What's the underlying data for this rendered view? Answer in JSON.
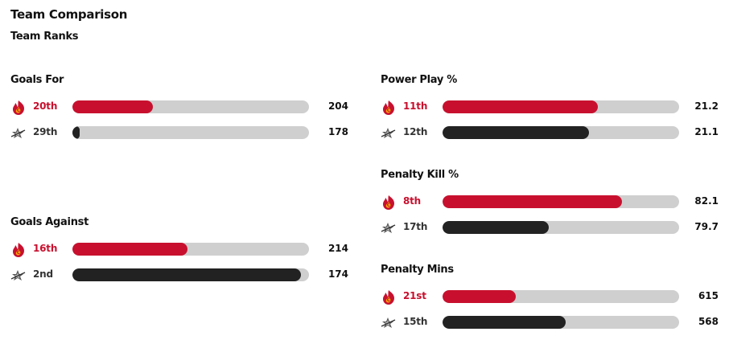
{
  "header": {
    "title": "Team Comparison",
    "subtitle": "Team Ranks"
  },
  "colors": {
    "calgary": "#c8102e",
    "dallas": "#222222",
    "track": "#cfcfcf"
  },
  "teams": {
    "home": {
      "icon": "flames-logo-icon"
    },
    "away": {
      "icon": "stars-logo-icon"
    }
  },
  "stats": {
    "goals_for": {
      "label": "Goals For",
      "home": {
        "rank": "20th",
        "value": "204",
        "fill": 0.34
      },
      "away": {
        "rank": "29th",
        "value": "178",
        "fill": 0.03
      }
    },
    "goals_against": {
      "label": "Goals Against",
      "home": {
        "rank": "16th",
        "value": "214",
        "fill": 0.485
      },
      "away": {
        "rank": "2nd",
        "value": "174",
        "fill": 0.965
      }
    },
    "power_play": {
      "label": "Power Play %",
      "home": {
        "rank": "11th",
        "value": "21.2",
        "fill": 0.655
      },
      "away": {
        "rank": "12th",
        "value": "21.1",
        "fill": 0.62
      }
    },
    "penalty_kill": {
      "label": "Penalty Kill %",
      "home": {
        "rank": "8th",
        "value": "82.1",
        "fill": 0.76
      },
      "away": {
        "rank": "17th",
        "value": "79.7",
        "fill": 0.45
      }
    },
    "penalty_mins": {
      "label": "Penalty Mins",
      "home": {
        "rank": "21st",
        "value": "615",
        "fill": 0.31
      },
      "away": {
        "rank": "15th",
        "value": "568",
        "fill": 0.52
      }
    }
  }
}
